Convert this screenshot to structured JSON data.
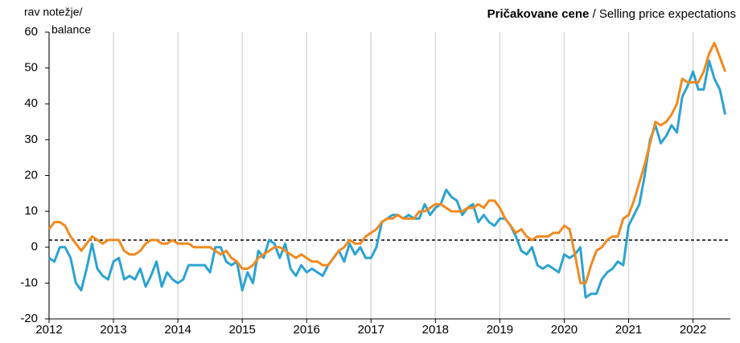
{
  "chart_data": {
    "type": "line",
    "title": "Pričakovane cene",
    "subtitle": "/ Selling price expectations",
    "y_label": [
      "rav notežje/",
      "balance"
    ],
    "x": [
      2012.0,
      2012.083,
      2012.167,
      2012.25,
      2012.333,
      2012.417,
      2012.5,
      2012.583,
      2012.667,
      2012.75,
      2012.833,
      2012.917,
      2013.0,
      2013.083,
      2013.167,
      2013.25,
      2013.333,
      2013.417,
      2013.5,
      2013.583,
      2013.667,
      2013.75,
      2013.833,
      2013.917,
      2014.0,
      2014.083,
      2014.167,
      2014.25,
      2014.333,
      2014.417,
      2014.5,
      2014.583,
      2014.667,
      2014.75,
      2014.833,
      2014.917,
      2015.0,
      2015.083,
      2015.167,
      2015.25,
      2015.333,
      2015.417,
      2015.5,
      2015.583,
      2015.667,
      2015.75,
      2015.833,
      2015.917,
      2016.0,
      2016.083,
      2016.167,
      2016.25,
      2016.333,
      2016.417,
      2016.5,
      2016.583,
      2016.667,
      2016.75,
      2016.833,
      2016.917,
      2017.0,
      2017.083,
      2017.167,
      2017.25,
      2017.333,
      2017.417,
      2017.5,
      2017.583,
      2017.667,
      2017.75,
      2017.833,
      2017.917,
      2018.0,
      2018.083,
      2018.167,
      2018.25,
      2018.333,
      2018.417,
      2018.5,
      2018.583,
      2018.667,
      2018.75,
      2018.833,
      2018.917,
      2019.0,
      2019.083,
      2019.167,
      2019.25,
      2019.333,
      2019.417,
      2019.5,
      2019.583,
      2019.667,
      2019.75,
      2019.833,
      2019.917,
      2020.0,
      2020.083,
      2020.167,
      2020.25,
      2020.333,
      2020.417,
      2020.5,
      2020.583,
      2020.667,
      2020.75,
      2020.833,
      2020.917,
      2021.0,
      2021.083,
      2021.167,
      2021.25,
      2021.333,
      2021.417,
      2021.5,
      2021.583,
      2021.667,
      2021.75,
      2021.833,
      2021.917,
      2022.0,
      2022.083,
      2022.167,
      2022.25,
      2022.333,
      2022.417,
      2022.5
    ],
    "series": [
      {
        "color": "#2ba3d1",
        "values": [
          -3,
          -4,
          0,
          0,
          -3,
          -10,
          -12,
          -6,
          1,
          -6,
          -8,
          -9,
          -4,
          -3,
          -9,
          -8,
          -9,
          -6,
          -11,
          -8,
          -4,
          -11,
          -7,
          -9,
          -10,
          -9,
          -5,
          -5,
          -5,
          -5,
          -7,
          0,
          0,
          -4,
          -5,
          -4,
          -12,
          -7,
          -10,
          -1,
          -3,
          2,
          1,
          -3,
          1,
          -6,
          -8,
          -5,
          -7,
          -6,
          -7,
          -8,
          -5,
          -3,
          -1,
          -4,
          1,
          -2,
          0,
          -3,
          -3,
          0,
          7,
          8,
          9,
          9,
          8,
          9,
          8,
          8,
          12,
          9,
          11,
          12,
          16,
          14,
          13,
          9,
          11,
          12,
          7,
          9,
          7,
          6,
          8,
          8,
          6,
          3,
          -1,
          -2,
          0,
          -5,
          -6,
          -5,
          -6,
          -7,
          -2,
          -3,
          -2,
          0,
          -14,
          -13,
          -13,
          -9,
          -7,
          -6,
          -4,
          -5,
          6,
          9,
          12,
          20,
          30,
          34,
          29,
          31,
          34,
          32,
          42,
          45,
          49,
          44,
          44,
          52,
          47,
          44,
          37
        ]
      },
      {
        "color": "#f18a1f",
        "values": [
          5,
          7,
          7,
          6,
          3,
          1,
          -1,
          1,
          3,
          2,
          1,
          2,
          2,
          2,
          -1,
          -2,
          -2,
          -1,
          1,
          2,
          2,
          1,
          1,
          2,
          1,
          1,
          1,
          0,
          0,
          0,
          0,
          -1,
          -2,
          -1,
          -3,
          -4,
          -6,
          -6,
          -5,
          -3,
          -2,
          -1,
          0,
          0,
          -1,
          -2,
          -3,
          -2,
          -3,
          -4,
          -4,
          -5,
          -5,
          -3,
          -1,
          0,
          2,
          1,
          1,
          3,
          4,
          5,
          7,
          8,
          8,
          9,
          8,
          8,
          8,
          10,
          10,
          11,
          12,
          12,
          11,
          10,
          10,
          10,
          11,
          11,
          12,
          11,
          13,
          13,
          11,
          8,
          6,
          4,
          5,
          3,
          2,
          3,
          3,
          3,
          4,
          4,
          6,
          5,
          -2,
          -10,
          -10,
          -5,
          -1,
          0,
          2,
          3,
          3,
          8,
          9,
          13,
          18,
          23,
          29,
          35,
          34,
          35,
          37,
          40,
          47,
          46,
          46,
          46,
          49,
          54,
          57,
          53,
          49
        ]
      }
    ],
    "reference_line": 2,
    "xlim": [
      2012,
      2022.58
    ],
    "xticks": [
      2012,
      2013,
      2014,
      2015,
      2016,
      2017,
      2018,
      2019,
      2020,
      2021,
      2022
    ],
    "ylim": [
      -20,
      60
    ],
    "yticks": [
      -20,
      -10,
      0,
      10,
      20,
      30,
      40,
      50,
      60
    ],
    "grid": true
  }
}
